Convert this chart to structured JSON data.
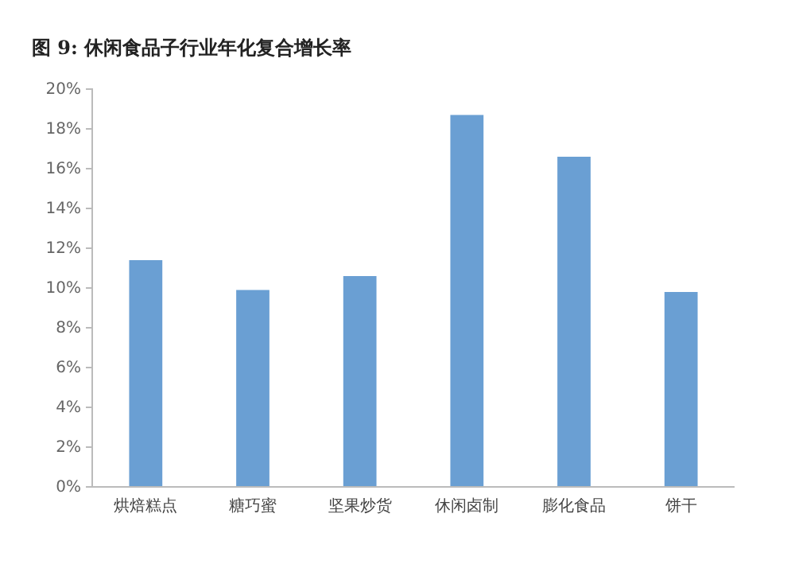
{
  "chart_data": {
    "type": "bar",
    "title": "图 9: 休闲食品子行业年化复合增长率",
    "categories": [
      "烘焙糕点",
      "糖巧蜜",
      "坚果炒货",
      "休闲卤制",
      "膨化食品",
      "饼干"
    ],
    "values": [
      11.4,
      9.9,
      10.6,
      18.7,
      16.6,
      9.8
    ],
    "color": "#6a9fd3",
    "ylim": [
      0,
      20
    ],
    "yticks": [
      {
        "value": 0,
        "label": "0%"
      },
      {
        "value": 2,
        "label": "2%"
      },
      {
        "value": 4,
        "label": "4%"
      },
      {
        "value": 6,
        "label": "6%"
      },
      {
        "value": 8,
        "label": "8%"
      },
      {
        "value": 10,
        "label": "10%"
      },
      {
        "value": 12,
        "label": "12%"
      },
      {
        "value": 14,
        "label": "14%"
      },
      {
        "value": 16,
        "label": "16%"
      },
      {
        "value": 18,
        "label": "18%"
      },
      {
        "value": 20,
        "label": "20%"
      }
    ],
    "grid": false
  }
}
